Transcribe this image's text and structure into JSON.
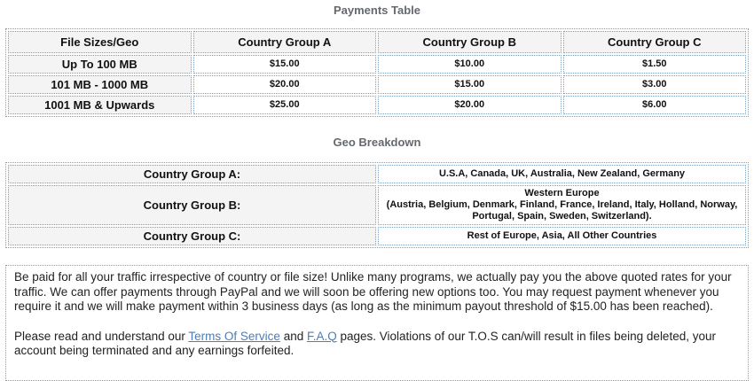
{
  "payments": {
    "title": "Payments Table",
    "headers": [
      "File Sizes/Geo",
      "Country Group A",
      "Country Group B",
      "Country Group C"
    ],
    "rows": [
      {
        "label": "Up To 100 MB",
        "a": "$15.00",
        "b": "$10.00",
        "c": "$1.50"
      },
      {
        "label": "101 MB - 1000 MB",
        "a": "$20.00",
        "b": "$15.00",
        "c": "$3.00"
      },
      {
        "label": "1001 MB & Upwards",
        "a": "$25.00",
        "b": "$20.00",
        "c": "$6.00"
      }
    ]
  },
  "geo": {
    "title": "Geo Breakdown",
    "rows": [
      {
        "label": "Country Group A:",
        "value": "U.S.A, Canada, UK, Australia, New Zealand, Germany"
      },
      {
        "label": "Country Group B:",
        "value_line1": "Western Europe",
        "value_line2": "(Austria, Belgium, Denmark, Finland, France, Ireland, Italy, Holland, Norway, Portugal, Spain, Sweden, Switzerland)."
      },
      {
        "label": "Country Group C:",
        "value": "Rest of Europe, Asia, All Other Countries"
      }
    ]
  },
  "notice": {
    "paragraph1": "Be paid for all your traffic irrespective of country or file size! Unlike many programs, we actually pay you the above quoted rates for your traffic. We can offer payments through PayPal and we will soon be offering new options too. You may request payment whenever you require it and we will make payment within 3 business days (as long as the minimum payout threshold of $15.00 has been reached).",
    "paragraph2": {
      "before_tos": "Please read and understand our ",
      "tos_link": "Terms Of Service",
      "between": " and ",
      "faq_link": "F.A.Q",
      "after": " pages. Violations of our T.O.S can/will result in files being deleted, your account being terminated and any earnings forfeited."
    }
  },
  "colors": {
    "border": "#7f9db9",
    "label_bg": "#f4f4f4",
    "title_text": "#65696e",
    "link": "#4e7cb5"
  }
}
